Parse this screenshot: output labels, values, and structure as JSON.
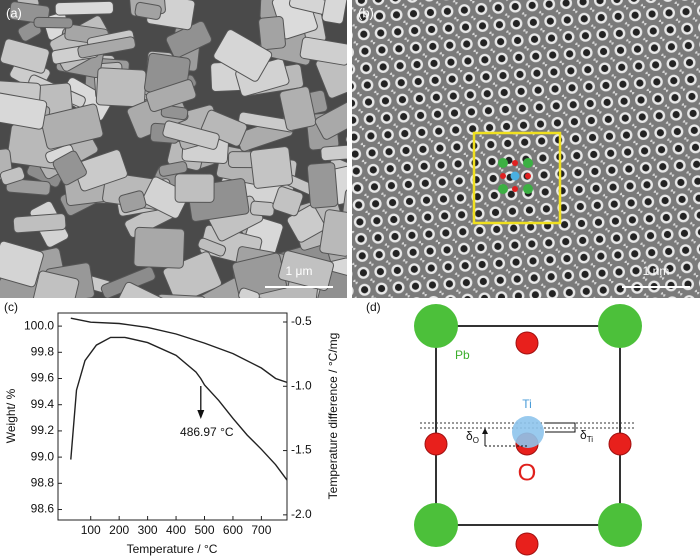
{
  "panels": {
    "a": {
      "label": "(a)",
      "scale_bar": "1 μm"
    },
    "b": {
      "label": "(b)",
      "scale_bar": "1 nm"
    },
    "c": {
      "label": "(c)"
    },
    "d": {
      "label": "(d)",
      "pb": "Pb",
      "ti": "Ti",
      "o": "O",
      "delta_o": {
        "symbol": "δ",
        "sub": "O"
      },
      "delta_ti": {
        "symbol": "δ",
        "sub": "Ti"
      }
    }
  },
  "chart_data": {
    "type": "line",
    "xlabel": "Temperature / °C",
    "ylabel": "Weight/ %",
    "y2label": "Temperature  difference / °C/mg",
    "xlim": [
      -15,
      790
    ],
    "xticks": [
      100,
      200,
      300,
      400,
      500,
      600,
      700
    ],
    "ylim": [
      98.52,
      100.1
    ],
    "yticks": [
      {
        "value": 100,
        "label": "100.0"
      },
      99.8,
      99.6,
      99.4,
      99.2,
      {
        "value": 99,
        "label": "99.0"
      },
      98.8,
      98.6
    ],
    "y2lim": [
      -2.04,
      -0.43
    ],
    "y2ticks": [
      -0.5,
      {
        "value": -1,
        "label": "-1.0"
      },
      -1.5,
      {
        "value": -2,
        "label": "-2.0"
      }
    ],
    "series": [
      {
        "color": "#222222",
        "x": [
          30,
          100,
          200,
          300,
          400,
          500,
          600,
          700,
          750,
          790
        ],
        "values": [
          100.06,
          100.03,
          100.02,
          99.99,
          99.94,
          99.87,
          99.79,
          99.68,
          99.6,
          99.57
        ]
      },
      {
        "color": "#222222",
        "axis": "y2",
        "x": [
          30,
          50,
          80,
          120,
          170,
          220,
          300,
          400,
          470,
          487,
          500,
          550,
          600,
          650,
          700,
          750,
          790
        ],
        "values": [
          -1.57,
          -1.03,
          -0.8,
          -0.68,
          -0.62,
          -0.62,
          -0.66,
          -0.76,
          -0.89,
          -0.94,
          -0.99,
          -1.11,
          -1.25,
          -1.38,
          -1.49,
          -1.61,
          -1.73
        ]
      }
    ],
    "annotation": {
      "text": "486.97 °C",
      "x": 486.97
    }
  }
}
